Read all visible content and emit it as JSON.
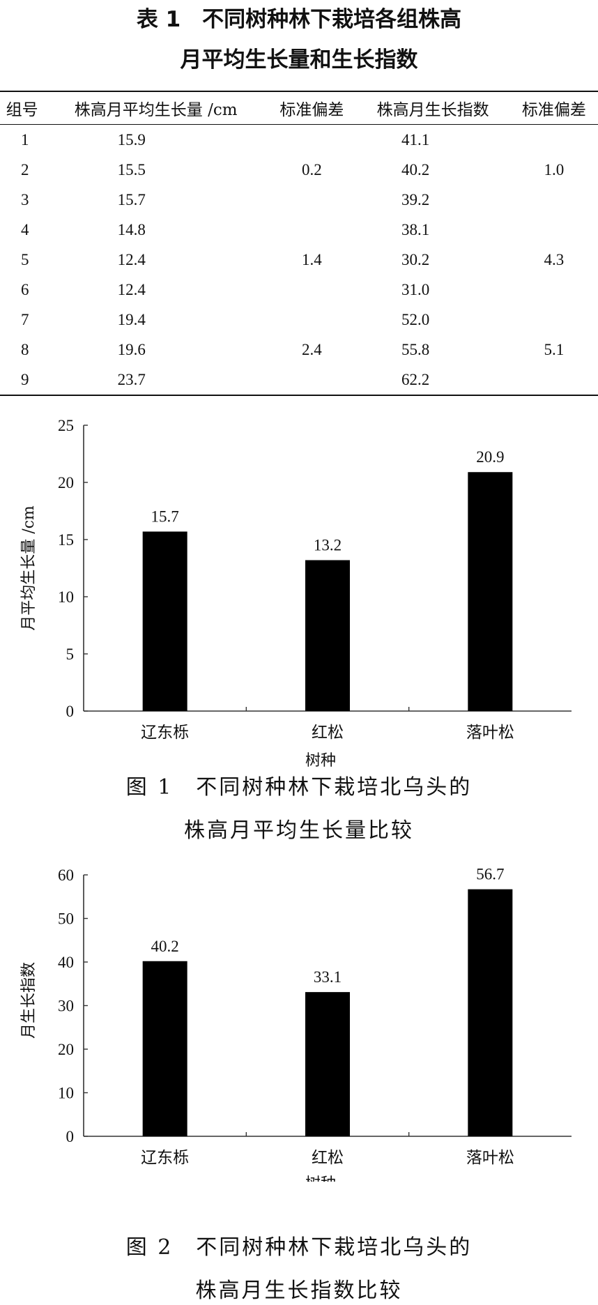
{
  "table": {
    "title_line1": "表 1　不同树种林下栽培各组株高",
    "title_line2": "月平均生长量和生长指数",
    "headers": [
      "组号",
      "株高月平均生长量 /cm",
      "标准偏差",
      "株高月生长指数",
      "标准偏差"
    ],
    "rows": [
      {
        "id": "1",
        "height": "15.9",
        "sd1": "",
        "index": "41.1",
        "sd2": ""
      },
      {
        "id": "2",
        "height": "15.5",
        "sd1": "0.2",
        "index": "40.2",
        "sd2": "1.0"
      },
      {
        "id": "3",
        "height": "15.7",
        "sd1": "",
        "index": "39.2",
        "sd2": ""
      },
      {
        "id": "4",
        "height": "14.8",
        "sd1": "",
        "index": "38.1",
        "sd2": ""
      },
      {
        "id": "5",
        "height": "12.4",
        "sd1": "1.4",
        "index": "30.2",
        "sd2": "4.3"
      },
      {
        "id": "6",
        "height": "12.4",
        "sd1": "",
        "index": "31.0",
        "sd2": ""
      },
      {
        "id": "7",
        "height": "19.4",
        "sd1": "",
        "index": "52.0",
        "sd2": ""
      },
      {
        "id": "8",
        "height": "19.6",
        "sd1": "2.4",
        "index": "55.8",
        "sd2": "5.1"
      },
      {
        "id": "9",
        "height": "23.7",
        "sd1": "",
        "index": "62.2",
        "sd2": ""
      }
    ]
  },
  "figures": [
    {
      "caption_line1": "图 1　不同树种林下栽培北乌头的",
      "caption_line2": "株高月平均生长量比较"
    },
    {
      "caption_line1": "图 2　不同树种林下栽培北乌头的",
      "caption_line2": "株高月生长指数比较"
    }
  ],
  "chart_data": [
    {
      "type": "bar",
      "categories": [
        "辽东栎",
        "红松",
        "落叶松"
      ],
      "values": [
        15.7,
        13.2,
        20.9
      ],
      "data_labels": [
        "15.7",
        "13.2",
        "20.9"
      ],
      "xlabel": "树种",
      "ylabel": "月平均生长量 /cm",
      "ylim": [
        0,
        25
      ],
      "yticks": [
        0,
        5,
        10,
        15,
        20,
        25
      ],
      "bar_color": "#000000",
      "grid": false
    },
    {
      "type": "bar",
      "categories": [
        "辽东栎",
        "红松",
        "落叶松"
      ],
      "values": [
        40.2,
        33.1,
        56.7
      ],
      "data_labels": [
        "40.2",
        "33.1",
        "56.7"
      ],
      "xlabel": "树种",
      "ylabel": "月生长指数",
      "ylim": [
        0,
        60
      ],
      "yticks": [
        0,
        10,
        20,
        30,
        40,
        50,
        60
      ],
      "bar_color": "#000000",
      "grid": false
    }
  ]
}
